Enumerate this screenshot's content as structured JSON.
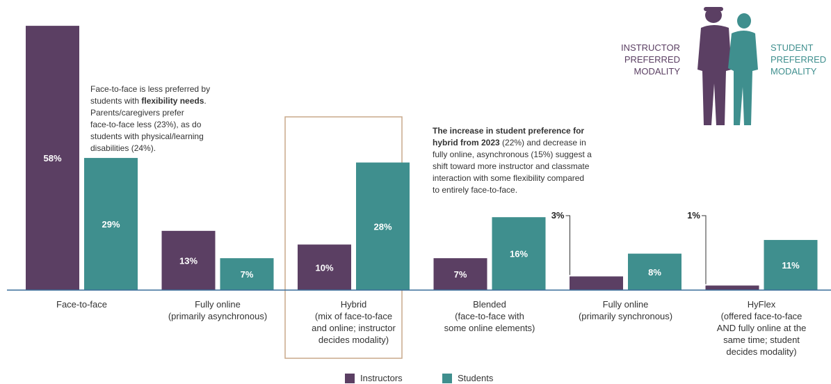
{
  "chart_data": {
    "type": "bar",
    "categories": [
      "Face-to-face",
      "Fully online\n(primarily asynchronous)",
      "Hybrid\n(mix of face-to-face\nand online; instructor\ndecides modality)",
      "Blended\n(face-to-face with\nsome online elements)",
      "Fully online\n(primarily synchronous)",
      "HyFlex\n(offered face-to-face\nAND fully online at the\nsame time; student\ndecides modality)"
    ],
    "series": [
      {
        "name": "Instructors",
        "color": "#5b3f63",
        "values": [
          58,
          13,
          10,
          7,
          3,
          1
        ],
        "value_labels": [
          "58%",
          "13%",
          "10%",
          "7%",
          "3%",
          "1%"
        ]
      },
      {
        "name": "Students",
        "color": "#3f8f8e",
        "values": [
          29,
          7,
          28,
          16,
          8,
          11
        ],
        "value_labels": [
          "29%",
          "7%",
          "28%",
          "16%",
          "8%",
          "11%"
        ]
      }
    ],
    "ylim": [
      0,
      60
    ],
    "legend": "bottom",
    "figure_labels": [
      "INSTRUCTOR\nPREFERRED\nMODALITY",
      "STUDENT\nPREFERRED\nMODALITY"
    ],
    "annotations": [
      {
        "lines": [
          [
            {
              "text": "Face-to-face is less preferred by"
            }
          ],
          [
            {
              "text": "students with "
            },
            {
              "text": "flexibility needs",
              "bold": true
            },
            {
              "text": "."
            }
          ],
          [
            {
              "text": "Parents/caregivers prefer"
            }
          ],
          [
            {
              "text": "face-to-face less (23%), as do"
            }
          ],
          [
            {
              "text": "students with physical/learning"
            }
          ],
          [
            {
              "text": "disabilities (24%)."
            }
          ]
        ]
      },
      {
        "lines": [
          [
            {
              "text": "The increase in student preference for",
              "bold": true
            }
          ],
          [
            {
              "text": "hybrid from 2023",
              "bold": true
            },
            {
              "text": " (22%) and decrease in"
            }
          ],
          [
            {
              "text": "fully online, asynchronous (15%) suggest a"
            }
          ],
          [
            {
              "text": "shift toward more instructor and classmate"
            }
          ],
          [
            {
              "text": "interaction with some flexibility compared"
            }
          ],
          [
            {
              "text": "to entirely face-to-face."
            }
          ]
        ]
      }
    ]
  }
}
